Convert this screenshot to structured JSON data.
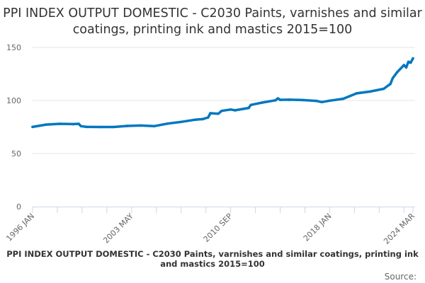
{
  "chart_data": {
    "type": "line",
    "title": "PPI INDEX OUTPUT DOMESTIC - C2030 Paints, varnishes and similar coatings, printing ink and mastics 2015=100",
    "xlabel": "",
    "ylabel": "",
    "x_range": [
      "1996-01",
      "2024-03"
    ],
    "ylim": [
      0,
      150
    ],
    "y_ticks": [
      0,
      50,
      100,
      150
    ],
    "x_tick_labels": [
      "1996 JAN",
      "2003 MAY",
      "2010 SEP",
      "2018 JAN",
      "2024 MAR"
    ],
    "grid": true,
    "legend": "none",
    "series_color": "#0077c0",
    "points": [
      [
        "1996-01",
        75.1
      ],
      [
        "1997-01",
        77.3
      ],
      [
        "1998-01",
        78.0
      ],
      [
        "1999-01",
        77.7
      ],
      [
        "1999-06",
        78.0
      ],
      [
        "1999-08",
        75.8
      ],
      [
        "2000-01",
        75.1
      ],
      [
        "2001-01",
        75.0
      ],
      [
        "2002-01",
        75.0
      ],
      [
        "2003-01",
        76.0
      ],
      [
        "2004-01",
        76.4
      ],
      [
        "2005-01",
        75.8
      ],
      [
        "2006-01",
        78.2
      ],
      [
        "2007-01",
        79.8
      ],
      [
        "2008-01",
        81.8
      ],
      [
        "2008-08",
        82.4
      ],
      [
        "2009-01",
        84.0
      ],
      [
        "2009-03",
        88.0
      ],
      [
        "2009-10",
        87.5
      ],
      [
        "2010-01",
        90.2
      ],
      [
        "2010-09",
        91.5
      ],
      [
        "2011-01",
        90.7
      ],
      [
        "2012-01",
        92.9
      ],
      [
        "2012-03",
        95.8
      ],
      [
        "2013-01",
        98.0
      ],
      [
        "2014-01",
        100.2
      ],
      [
        "2014-03",
        102.0
      ],
      [
        "2014-05",
        100.6
      ],
      [
        "2015-01",
        100.7
      ],
      [
        "2016-01",
        100.4
      ],
      [
        "2017-01",
        99.6
      ],
      [
        "2017-06",
        98.5
      ],
      [
        "2018-01",
        99.8
      ],
      [
        "2019-01",
        101.6
      ],
      [
        "2020-01",
        106.7
      ],
      [
        "2021-01",
        108.4
      ],
      [
        "2022-01",
        111.0
      ],
      [
        "2022-07",
        115.6
      ],
      [
        "2022-09",
        121.0
      ],
      [
        "2023-01",
        126.7
      ],
      [
        "2023-07",
        133.3
      ],
      [
        "2023-09",
        131.1
      ],
      [
        "2023-11",
        136.5
      ],
      [
        "2024-01",
        135.6
      ],
      [
        "2024-03",
        139.6
      ]
    ]
  },
  "footer": {
    "title": "PPI INDEX OUTPUT DOMESTIC - C2030 Paints, varnishes and similar coatings, printing ink and mastics 2015=100",
    "source": "Source:"
  }
}
